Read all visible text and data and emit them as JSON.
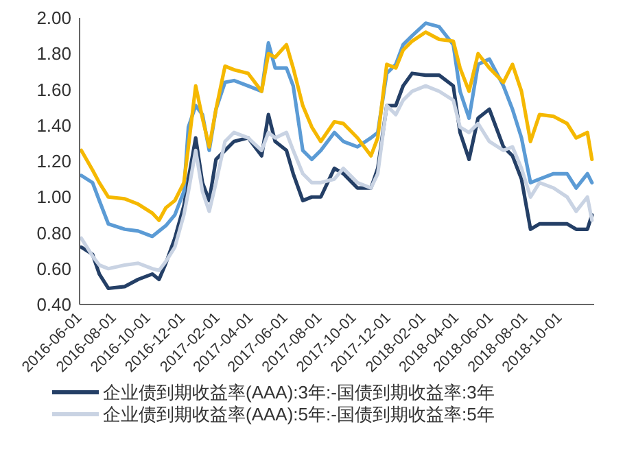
{
  "chart_data": {
    "type": "line",
    "x": [
      "2016-06-04",
      "2016-06-24",
      "2016-07-06",
      "2016-07-22",
      "2016-08-20",
      "2016-09-13",
      "2016-10-08",
      "2016-10-20",
      "2016-11-01",
      "2016-11-17",
      "2016-12-03",
      "2016-12-11",
      "2016-12-24",
      "2017-01-05",
      "2017-01-17",
      "2017-01-29",
      "2017-02-14",
      "2017-03-02",
      "2017-03-27",
      "2017-04-20",
      "2017-05-02",
      "2017-05-14",
      "2017-06-03",
      "2017-06-15",
      "2017-07-02",
      "2017-07-18",
      "2017-08-03",
      "2017-08-27",
      "2017-09-12",
      "2017-10-07",
      "2017-10-31",
      "2017-11-12",
      "2017-11-28",
      "2017-12-14",
      "2017-12-27",
      "2018-01-12",
      "2018-02-05",
      "2018-03-01",
      "2018-03-26",
      "2018-04-07",
      "2018-04-23",
      "2018-05-09",
      "2018-05-29",
      "2018-06-23",
      "2018-07-09",
      "2018-07-25",
      "2018-08-10",
      "2018-08-26",
      "2018-09-20",
      "2018-10-14",
      "2018-10-30",
      "2018-11-19",
      "2018-11-27"
    ],
    "series": [
      {
        "name": "企业债到期收益率(AAA):3年:-国债到期收益率:3年",
        "color": "#243f66",
        "values": [
          0.72,
          0.68,
          0.57,
          0.49,
          0.5,
          0.54,
          0.57,
          0.54,
          0.63,
          0.77,
          0.95,
          1.1,
          1.33,
          1.08,
          0.98,
          1.21,
          1.26,
          1.31,
          1.33,
          1.23,
          1.46,
          1.31,
          1.26,
          1.13,
          0.98,
          1.0,
          1.0,
          1.16,
          1.13,
          1.05,
          1.05,
          1.16,
          1.51,
          1.51,
          1.62,
          1.69,
          1.68,
          1.68,
          1.62,
          1.36,
          1.21,
          1.44,
          1.49,
          1.28,
          1.23,
          1.1,
          0.82,
          0.85,
          0.85,
          0.85,
          0.82,
          0.82,
          0.9
        ]
      },
      {
        "name": "企业债到期收益率(AAA):5年:-国债到期收益率:5年",
        "color": "#c9d3e3",
        "values": [
          0.77,
          0.67,
          0.62,
          0.6,
          0.62,
          0.63,
          0.6,
          0.59,
          0.64,
          0.72,
          0.9,
          1.03,
          1.26,
          1.03,
          0.92,
          1.08,
          1.31,
          1.36,
          1.33,
          1.26,
          1.36,
          1.33,
          1.36,
          1.26,
          1.13,
          1.08,
          1.08,
          1.1,
          1.16,
          1.08,
          1.05,
          1.13,
          1.51,
          1.46,
          1.54,
          1.59,
          1.62,
          1.59,
          1.54,
          1.39,
          1.36,
          1.41,
          1.31,
          1.26,
          1.28,
          1.16,
          1.0,
          1.08,
          1.05,
          1.0,
          0.92,
          1.0,
          0.87
        ]
      },
      {
        "color": "#5b9bd5",
        "values": [
          1.12,
          1.08,
          0.98,
          0.85,
          0.82,
          0.81,
          0.78,
          0.81,
          0.84,
          0.9,
          1.03,
          1.39,
          1.51,
          1.46,
          1.26,
          1.49,
          1.64,
          1.65,
          1.62,
          1.59,
          1.86,
          1.72,
          1.72,
          1.62,
          1.26,
          1.21,
          1.26,
          1.36,
          1.31,
          1.28,
          1.33,
          1.36,
          1.69,
          1.74,
          1.85,
          1.9,
          1.97,
          1.95,
          1.85,
          1.59,
          1.44,
          1.74,
          1.77,
          1.62,
          1.49,
          1.33,
          1.08,
          1.1,
          1.13,
          1.13,
          1.05,
          1.13,
          1.08
        ]
      },
      {
        "color": "#f5b800",
        "values": [
          1.26,
          1.15,
          1.08,
          1.0,
          0.99,
          0.96,
          0.91,
          0.87,
          0.94,
          0.98,
          1.08,
          1.28,
          1.62,
          1.44,
          1.28,
          1.49,
          1.73,
          1.71,
          1.69,
          1.59,
          1.8,
          1.78,
          1.85,
          1.72,
          1.51,
          1.39,
          1.31,
          1.42,
          1.41,
          1.33,
          1.23,
          1.33,
          1.74,
          1.72,
          1.82,
          1.87,
          1.92,
          1.88,
          1.87,
          1.72,
          1.59,
          1.8,
          1.72,
          1.64,
          1.74,
          1.59,
          1.31,
          1.46,
          1.45,
          1.41,
          1.33,
          1.36,
          1.21
        ]
      }
    ],
    "xlim": [
      "2016-06-01",
      "2018-12-01"
    ],
    "xticks": [
      "2016-06-01",
      "2016-08-01",
      "2016-10-01",
      "2016-12-01",
      "2017-02-01",
      "2017-04-01",
      "2017-06-01",
      "2017-08-01",
      "2017-10-01",
      "2017-12-01",
      "2018-02-01",
      "2018-04-01",
      "2018-06-01",
      "2018-08-01",
      "2018-10-01"
    ],
    "ylim": [
      0.4,
      2.0
    ],
    "yticks": [
      {
        "value": 0.4,
        "label": "0.40"
      },
      {
        "value": 0.6,
        "label": "0.60"
      },
      {
        "value": 0.8,
        "label": "0.80"
      },
      {
        "value": 1.0,
        "label": "1.00"
      },
      {
        "value": 1.2,
        "label": "1.20"
      },
      {
        "value": 1.4,
        "label": "1.40"
      },
      {
        "value": 1.6,
        "label": "1.60"
      },
      {
        "value": 1.8,
        "label": "1.80"
      },
      {
        "value": 2.0,
        "label": "2.00"
      }
    ],
    "grid": false,
    "legend": "bottom",
    "line_style": "solid"
  }
}
